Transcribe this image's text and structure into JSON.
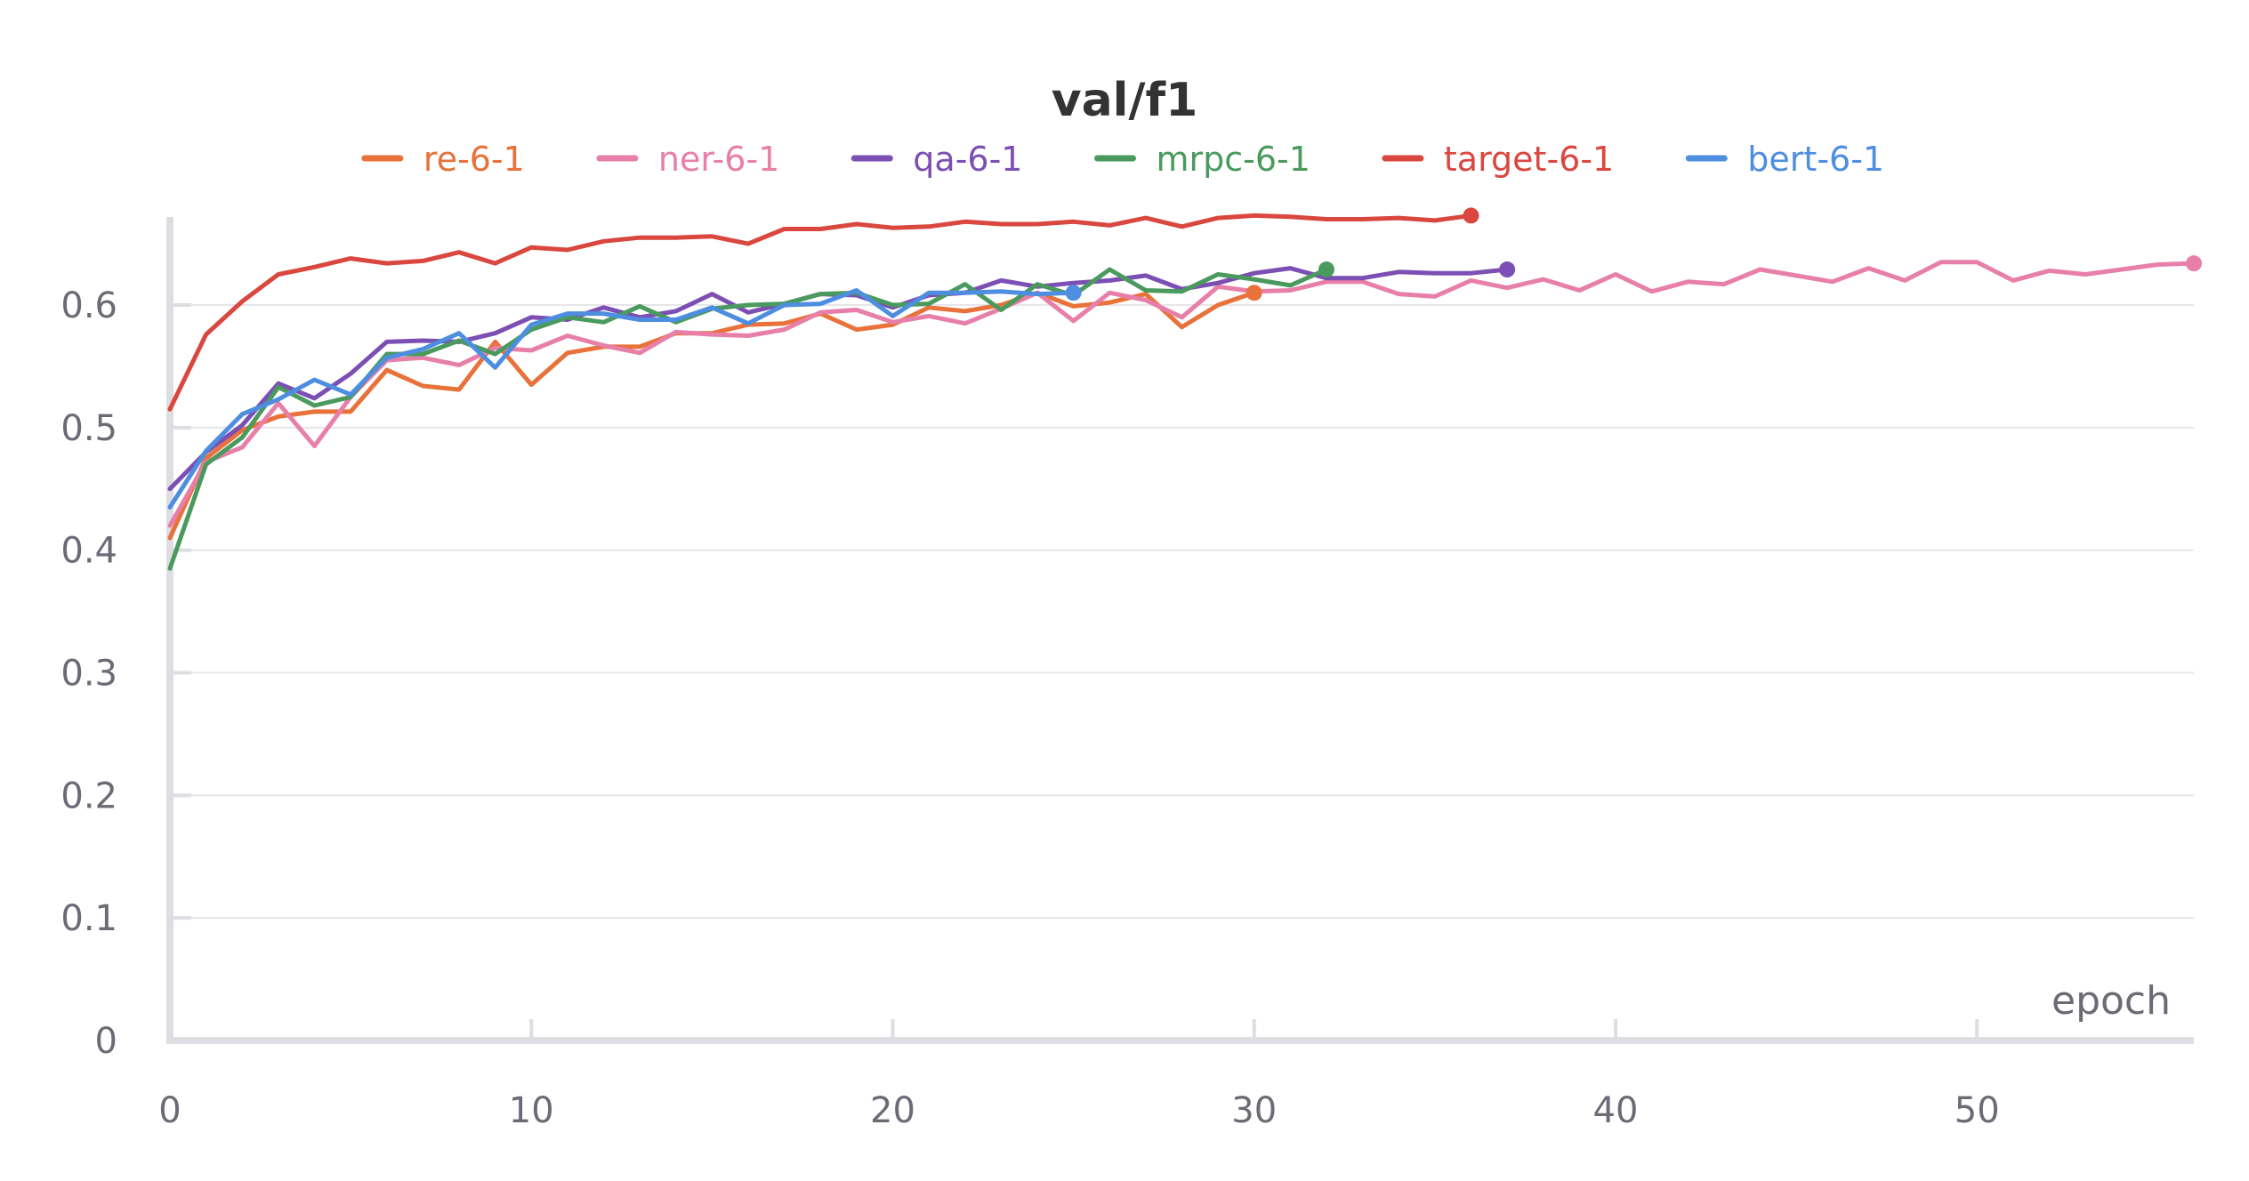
{
  "chart_data": {
    "type": "line",
    "title": "val/f1",
    "xlabel": "epoch",
    "ylabel": "",
    "xlim": [
      0,
      56
    ],
    "ylim": [
      0,
      0.68
    ],
    "x_ticks": [
      0,
      10,
      20,
      30,
      40,
      50
    ],
    "x_tick_labels": [
      "0",
      "10",
      "20",
      "30",
      "40",
      "50"
    ],
    "y_ticks": [
      0,
      0.1,
      0.2,
      0.3,
      0.4,
      0.5,
      0.6
    ],
    "y_tick_labels": [
      "0",
      "0.1",
      "0.2",
      "0.3",
      "0.4",
      "0.5",
      "0.6"
    ],
    "grid": "horizontal",
    "legend_position": "top",
    "series": [
      {
        "name": "re-6-1",
        "color": "#e8723a",
        "values": [
          0.41,
          0.475,
          0.498,
          0.509,
          0.513,
          0.513,
          0.547,
          0.534,
          0.531,
          0.57,
          0.535,
          0.561,
          0.566,
          0.566,
          0.577,
          0.577,
          0.584,
          0.585,
          0.593,
          0.58,
          0.584,
          0.598,
          0.595,
          0.6,
          0.61,
          0.599,
          0.602,
          0.609,
          0.582,
          0.6,
          0.61
        ]
      },
      {
        "name": "ner-6-1",
        "color": "#e77fa9",
        "values": [
          0.42,
          0.472,
          0.484,
          0.52,
          0.485,
          0.525,
          0.555,
          0.557,
          0.551,
          0.565,
          0.563,
          0.575,
          0.567,
          0.561,
          0.578,
          0.576,
          0.575,
          0.58,
          0.594,
          0.596,
          0.586,
          0.591,
          0.585,
          0.597,
          0.61,
          0.587,
          0.61,
          0.604,
          0.59,
          0.615,
          0.611,
          0.612,
          0.619,
          0.619,
          0.609,
          0.607,
          0.62,
          0.614,
          0.621,
          0.612,
          0.625,
          0.611,
          0.619,
          0.617,
          0.629,
          0.624,
          0.619,
          0.63,
          0.62,
          0.635,
          0.635,
          0.62,
          0.628,
          0.625,
          0.629,
          0.633,
          0.634
        ]
      },
      {
        "name": "qa-6-1",
        "color": "#7b4fb3",
        "values": [
          0.45,
          0.48,
          0.502,
          0.536,
          0.524,
          0.544,
          0.57,
          0.571,
          0.57,
          0.577,
          0.59,
          0.588,
          0.598,
          0.59,
          0.595,
          0.609,
          0.594,
          0.601,
          0.609,
          0.608,
          0.598,
          0.608,
          0.61,
          0.62,
          0.615,
          0.618,
          0.62,
          0.624,
          0.613,
          0.618,
          0.626,
          0.63,
          0.622,
          0.622,
          0.627,
          0.626,
          0.626,
          0.629
        ]
      },
      {
        "name": "mrpc-6-1",
        "color": "#4a9a5e",
        "values": [
          0.385,
          0.47,
          0.492,
          0.533,
          0.518,
          0.525,
          0.56,
          0.56,
          0.571,
          0.56,
          0.58,
          0.59,
          0.586,
          0.599,
          0.586,
          0.597,
          0.6,
          0.601,
          0.609,
          0.61,
          0.6,
          0.601,
          0.617,
          0.596,
          0.617,
          0.608,
          0.629,
          0.612,
          0.611,
          0.625,
          0.621,
          0.616,
          0.629
        ]
      },
      {
        "name": "target-6-1",
        "color": "#d9473f",
        "values": [
          0.515,
          0.576,
          0.603,
          0.625,
          0.631,
          0.638,
          0.634,
          0.636,
          0.643,
          0.634,
          0.647,
          0.645,
          0.652,
          0.655,
          0.655,
          0.656,
          0.65,
          0.662,
          0.662,
          0.666,
          0.663,
          0.664,
          0.668,
          0.666,
          0.666,
          0.668,
          0.665,
          0.671,
          0.664,
          0.671,
          0.673,
          0.672,
          0.67,
          0.67,
          0.671,
          0.669,
          0.673
        ]
      },
      {
        "name": "bert-6-1",
        "color": "#4e8ee0",
        "values": [
          0.435,
          0.481,
          0.511,
          0.523,
          0.539,
          0.527,
          0.557,
          0.564,
          0.577,
          0.549,
          0.584,
          0.593,
          0.593,
          0.588,
          0.588,
          0.598,
          0.585,
          0.6,
          0.601,
          0.612,
          0.591,
          0.61,
          0.61,
          0.611,
          0.609,
          0.61
        ]
      }
    ]
  }
}
